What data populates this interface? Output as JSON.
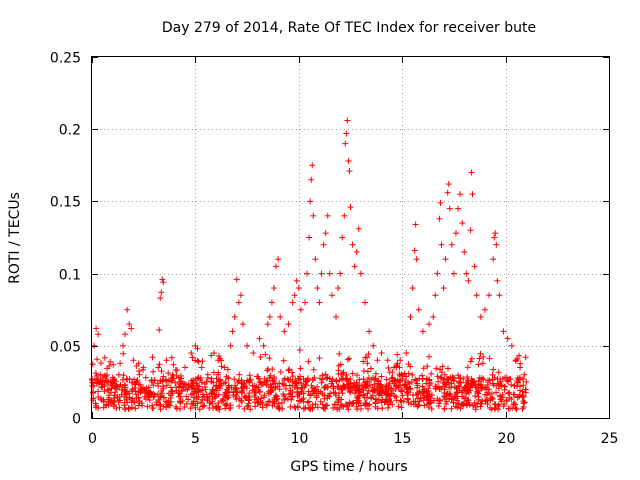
{
  "chart_data": {
    "type": "scatter",
    "title": "Day 279 of 2014, Rate Of TEC Index for receiver bute",
    "xlabel": "GPS time / hours",
    "ylabel": "ROTI / TECUs",
    "xlim": [
      0,
      25
    ],
    "ylim": [
      0,
      0.25
    ],
    "xticks": [
      0,
      5,
      10,
      15,
      20,
      25
    ],
    "xtick_labels": [
      "0",
      "5",
      "10",
      "15",
      "20",
      "25"
    ],
    "yticks": [
      0,
      0.05,
      0.1,
      0.15,
      0.2,
      0.25
    ],
    "ytick_labels": [
      "0",
      "0.05",
      "0.1",
      "0.15",
      "0.2",
      "0.25"
    ],
    "grid": true,
    "marker": "+",
    "color": "#ff0000",
    "series": [
      {
        "points": [
          [
            0.1,
            0.05
          ],
          [
            0.2,
            0.062
          ],
          [
            0.3,
            0.058
          ],
          [
            0.4,
            0.03
          ],
          [
            0.5,
            0.025
          ],
          [
            0.6,
            0.022
          ],
          [
            1.0,
            0.028
          ],
          [
            1.3,
            0.03
          ],
          [
            1.5,
            0.05
          ],
          [
            1.6,
            0.058
          ],
          [
            1.7,
            0.075
          ],
          [
            1.8,
            0.065
          ],
          [
            1.9,
            0.062
          ],
          [
            2.0,
            0.04
          ],
          [
            2.3,
            0.03
          ],
          [
            2.6,
            0.028
          ],
          [
            2.9,
            0.025
          ],
          [
            3.2,
            0.035
          ],
          [
            3.25,
            0.061
          ],
          [
            3.3,
            0.083
          ],
          [
            3.35,
            0.087
          ],
          [
            3.4,
            0.096
          ],
          [
            3.45,
            0.094
          ],
          [
            3.6,
            0.04
          ],
          [
            3.9,
            0.03
          ],
          [
            4.2,
            0.028
          ],
          [
            4.5,
            0.035
          ],
          [
            4.8,
            0.045
          ],
          [
            5.0,
            0.05
          ],
          [
            5.1,
            0.048
          ],
          [
            5.3,
            0.035
          ],
          [
            5.6,
            0.03
          ],
          [
            5.9,
            0.045
          ],
          [
            6.1,
            0.04
          ],
          [
            6.4,
            0.035
          ],
          [
            6.7,
            0.05
          ],
          [
            6.8,
            0.06
          ],
          [
            6.9,
            0.07
          ],
          [
            7.0,
            0.096
          ],
          [
            7.1,
            0.08
          ],
          [
            7.2,
            0.085
          ],
          [
            7.3,
            0.065
          ],
          [
            7.5,
            0.05
          ],
          [
            7.8,
            0.045
          ],
          [
            8.1,
            0.055
          ],
          [
            8.3,
            0.05
          ],
          [
            8.5,
            0.065
          ],
          [
            8.6,
            0.07
          ],
          [
            8.7,
            0.08
          ],
          [
            8.8,
            0.09
          ],
          [
            8.9,
            0.105
          ],
          [
            9.0,
            0.11
          ],
          [
            9.1,
            0.07
          ],
          [
            9.3,
            0.06
          ],
          [
            9.5,
            0.065
          ],
          [
            9.7,
            0.08
          ],
          [
            9.8,
            0.085
          ],
          [
            9.9,
            0.095
          ],
          [
            10.0,
            0.09
          ],
          [
            10.1,
            0.075
          ],
          [
            10.3,
            0.08
          ],
          [
            10.4,
            0.1
          ],
          [
            10.5,
            0.125
          ],
          [
            10.55,
            0.15
          ],
          [
            10.6,
            0.165
          ],
          [
            10.65,
            0.175
          ],
          [
            10.7,
            0.14
          ],
          [
            10.8,
            0.11
          ],
          [
            10.9,
            0.09
          ],
          [
            11.0,
            0.08
          ],
          [
            11.1,
            0.1
          ],
          [
            11.2,
            0.12
          ],
          [
            11.3,
            0.128
          ],
          [
            11.4,
            0.14
          ],
          [
            11.5,
            0.1
          ],
          [
            11.6,
            0.085
          ],
          [
            11.8,
            0.07
          ],
          [
            11.9,
            0.09
          ],
          [
            12.0,
            0.1
          ],
          [
            12.1,
            0.125
          ],
          [
            12.2,
            0.14
          ],
          [
            12.25,
            0.19
          ],
          [
            12.3,
            0.197
          ],
          [
            12.35,
            0.206
          ],
          [
            12.4,
            0.178
          ],
          [
            12.45,
            0.171
          ],
          [
            12.5,
            0.146
          ],
          [
            12.6,
            0.12
          ],
          [
            12.7,
            0.105
          ],
          [
            12.8,
            0.115
          ],
          [
            12.9,
            0.131
          ],
          [
            13.0,
            0.1
          ],
          [
            13.2,
            0.08
          ],
          [
            13.4,
            0.06
          ],
          [
            13.6,
            0.05
          ],
          [
            13.8,
            0.04
          ],
          [
            14.0,
            0.045
          ],
          [
            14.3,
            0.04
          ],
          [
            14.6,
            0.035
          ],
          [
            14.9,
            0.04
          ],
          [
            15.2,
            0.045
          ],
          [
            15.4,
            0.07
          ],
          [
            15.5,
            0.09
          ],
          [
            15.6,
            0.116
          ],
          [
            15.65,
            0.134
          ],
          [
            15.7,
            0.11
          ],
          [
            15.8,
            0.075
          ],
          [
            16.0,
            0.06
          ],
          [
            16.3,
            0.065
          ],
          [
            16.5,
            0.07
          ],
          [
            16.6,
            0.085
          ],
          [
            16.7,
            0.1
          ],
          [
            16.8,
            0.138
          ],
          [
            16.85,
            0.149
          ],
          [
            16.9,
            0.12
          ],
          [
            17.0,
            0.09
          ],
          [
            17.1,
            0.11
          ],
          [
            17.2,
            0.156
          ],
          [
            17.25,
            0.162
          ],
          [
            17.3,
            0.145
          ],
          [
            17.4,
            0.12
          ],
          [
            17.5,
            0.1
          ],
          [
            17.6,
            0.128
          ],
          [
            17.7,
            0.145
          ],
          [
            17.8,
            0.155
          ],
          [
            17.9,
            0.135
          ],
          [
            18.0,
            0.115
          ],
          [
            18.1,
            0.1
          ],
          [
            18.2,
            0.095
          ],
          [
            18.3,
            0.13
          ],
          [
            18.35,
            0.17
          ],
          [
            18.4,
            0.155
          ],
          [
            18.5,
            0.105
          ],
          [
            18.6,
            0.085
          ],
          [
            18.8,
            0.07
          ],
          [
            19.0,
            0.075
          ],
          [
            19.2,
            0.085
          ],
          [
            19.4,
            0.11
          ],
          [
            19.45,
            0.125
          ],
          [
            19.5,
            0.128
          ],
          [
            19.55,
            0.12
          ],
          [
            19.6,
            0.095
          ],
          [
            19.7,
            0.085
          ],
          [
            19.9,
            0.06
          ],
          [
            20.1,
            0.055
          ],
          [
            20.3,
            0.05
          ],
          [
            20.5,
            0.04
          ],
          [
            20.7,
            0.035
          ],
          [
            20.9,
            0.03
          ],
          [
            21.0,
            0.025
          ]
        ]
      }
    ]
  }
}
